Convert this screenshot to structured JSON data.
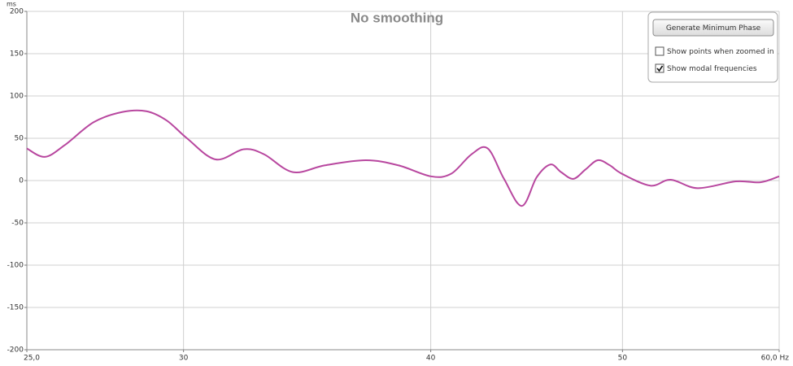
{
  "chart_data": {
    "type": "line",
    "title": "No smoothing",
    "y_unit": "ms",
    "x": [
      25.0,
      25.53,
      26.13,
      27.02,
      27.93,
      28.73,
      29.42,
      30.12,
      31.14,
      32.18,
      32.95,
      34.07,
      35.37,
      37.09,
      38.52,
      40.0,
      40.96,
      41.94,
      42.74,
      43.56,
      44.47,
      45.25,
      45.98,
      46.55,
      47.22,
      47.89,
      48.58,
      49.27,
      49.97,
      51.65,
      52.89,
      54.57,
      57.04,
      58.7,
      60.0
    ],
    "series": [
      {
        "color": "#b8479f",
        "values": [
          38,
          28,
          42,
          69,
          81,
          82,
          71,
          50,
          25,
          37,
          31,
          10,
          18,
          24,
          18,
          5,
          8,
          31,
          38,
          2,
          -30,
          4,
          19,
          10,
          2,
          13,
          24,
          18,
          8,
          -6,
          1,
          -9,
          -1,
          -2,
          5
        ]
      }
    ],
    "xlim": [
      25,
      60
    ],
    "xscale": "log",
    "xticks": [
      {
        "value": 25,
        "label": "25,0"
      },
      30,
      40,
      50,
      {
        "value": 60,
        "label": "60,0 Hz"
      }
    ],
    "ylim": [
      -200,
      200
    ],
    "yticks": [
      -200,
      -150,
      -100,
      -50,
      0,
      50,
      100,
      150,
      200
    ],
    "grid": true
  },
  "controls": {
    "button": "Generate Minimum Phase",
    "checkboxes": [
      {
        "label": "Show points when zoomed in",
        "checked": false
      },
      {
        "label": "Show modal frequencies",
        "checked": true
      }
    ]
  }
}
